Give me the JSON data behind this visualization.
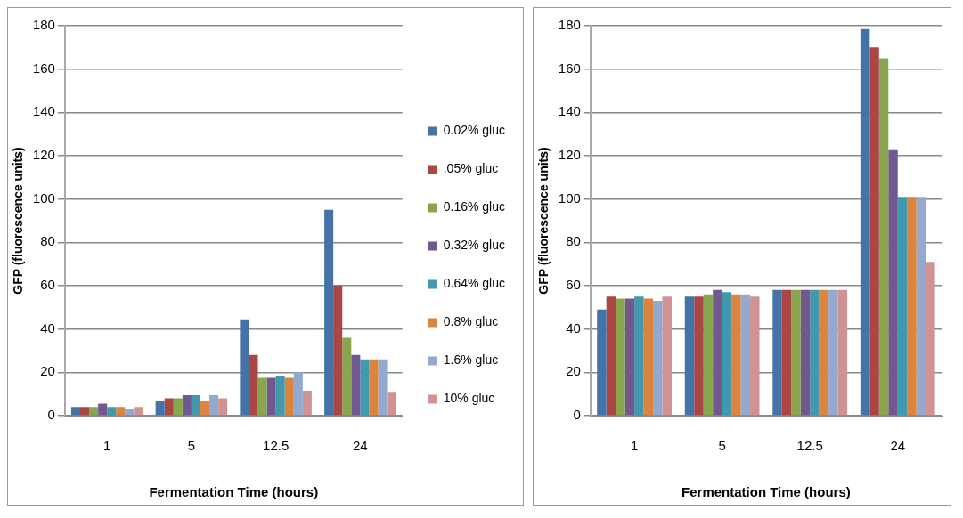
{
  "chart_data": [
    {
      "type": "bar",
      "xlabel": "Fermentation Time (hours)",
      "ylabel": "GFP (fluorescence units)",
      "categories": [
        "1",
        "5",
        "12.5",
        "24"
      ],
      "ylim": [
        0,
        180
      ],
      "yticks": [
        0,
        20,
        40,
        60,
        80,
        100,
        120,
        140,
        160,
        180
      ],
      "grid": "y",
      "legend": "right",
      "series": [
        {
          "name": "0.02% gluc",
          "color": "#4572a7",
          "values": [
            4,
            7,
            44.5,
            95
          ]
        },
        {
          "name": ".05% gluc",
          "color": "#aa4643",
          "values": [
            4,
            8,
            28,
            60
          ]
        },
        {
          "name": "0.16% gluc",
          "color": "#89a54e",
          "values": [
            4,
            8,
            17.5,
            36
          ]
        },
        {
          "name": "0.32% gluc",
          "color": "#71588f",
          "values": [
            5.5,
            9.5,
            17.5,
            28
          ]
        },
        {
          "name": "0.64% gluc",
          "color": "#4198af",
          "values": [
            4,
            9.5,
            18.5,
            26
          ]
        },
        {
          "name": "0.8% gluc",
          "color": "#db843d",
          "values": [
            4,
            7,
            17.5,
            26
          ]
        },
        {
          "name": "1.6% gluc",
          "color": "#93a9cf",
          "values": [
            3,
            9.5,
            20,
            26
          ]
        },
        {
          "name": "10% gluc",
          "color": "#d19392",
          "values": [
            4,
            8,
            11.5,
            11
          ]
        }
      ]
    },
    {
      "type": "bar",
      "xlabel": "Fermentation Time (hours)",
      "ylabel": "GFP (fluorescence units)",
      "categories": [
        "1",
        "5",
        "12.5",
        "24"
      ],
      "ylim": [
        0,
        180
      ],
      "yticks": [
        0,
        20,
        40,
        60,
        80,
        100,
        120,
        140,
        160,
        180
      ],
      "grid": "y",
      "series": [
        {
          "color": "#4572a7",
          "values": [
            49,
            55,
            58,
            178.5
          ]
        },
        {
          "color": "#aa4643",
          "values": [
            55,
            55,
            58,
            170
          ]
        },
        {
          "color": "#89a54e",
          "values": [
            54,
            56,
            58,
            165
          ]
        },
        {
          "color": "#71588f",
          "values": [
            54,
            58,
            58,
            123
          ]
        },
        {
          "color": "#4198af",
          "values": [
            55,
            57,
            58,
            101
          ]
        },
        {
          "color": "#db843d",
          "values": [
            54,
            56,
            58,
            101
          ]
        },
        {
          "color": "#93a9cf",
          "values": [
            53,
            56,
            58,
            101
          ]
        },
        {
          "color": "#d19392",
          "values": [
            55,
            55,
            58,
            71
          ]
        }
      ]
    }
  ]
}
